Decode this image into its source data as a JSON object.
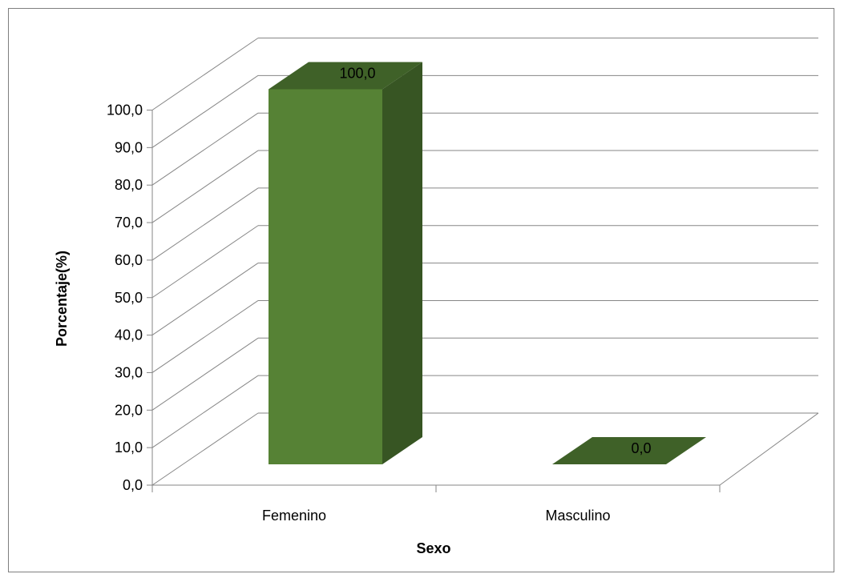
{
  "chart_data": {
    "type": "bar",
    "title": "",
    "xlabel": "Sexo",
    "ylabel": "Porcentaje(%)",
    "categories": [
      "Femenino",
      "Masculino"
    ],
    "values": [
      100.0,
      0.0
    ],
    "data_labels": [
      "100,0",
      "0,0"
    ],
    "ylim": [
      0,
      100
    ],
    "yticks": [
      0,
      10,
      20,
      30,
      40,
      50,
      60,
      70,
      80,
      90,
      100
    ],
    "ytick_labels": [
      "0,0",
      "10,0",
      "20,0",
      "30,0",
      "40,0",
      "50,0",
      "60,0",
      "70,0",
      "80,0",
      "90,0",
      "100,0"
    ],
    "grid": true,
    "legend": "none",
    "style": "3d-column",
    "colors": {
      "bar_front": "#568235",
      "bar_side": "#375523",
      "bar_top": "#3f6128",
      "grid": "#868686",
      "frame": "#7f7f7f"
    }
  }
}
